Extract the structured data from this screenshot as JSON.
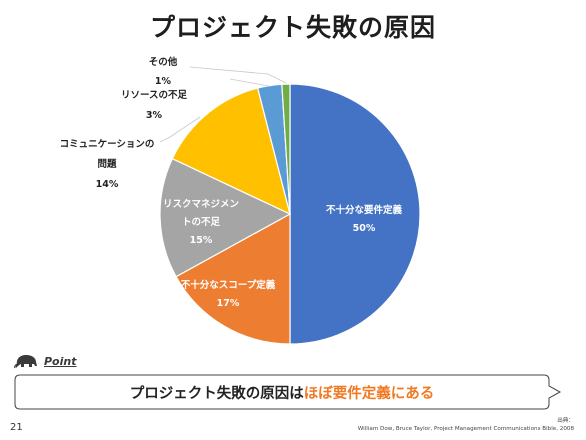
{
  "title": "プロジェクト失敗の原因",
  "chart_data": {
    "type": "pie",
    "title": "プロジェクト失敗の原因",
    "slices": [
      {
        "label": "不十分な要件定義",
        "value": 50,
        "value_label": "50%",
        "color": "#4472c4",
        "label_position": "inside"
      },
      {
        "label": "不十分なスコープ定義",
        "value": 17,
        "value_label": "17%",
        "color": "#ed7d31",
        "label_position": "inside"
      },
      {
        "label": "リスクマネジメントの不足",
        "value": 15,
        "value_label": "15%",
        "color": "#a5a5a5",
        "label_position": "inside"
      },
      {
        "label": "コミュニケーションの問題",
        "value": 14,
        "value_label": "14%",
        "color": "#ffc000",
        "label_position": "outside"
      },
      {
        "label": "リソースの不足",
        "value": 3,
        "value_label": "3%",
        "color": "#5b9bd5",
        "label_position": "outside"
      },
      {
        "label": "その他",
        "value": 1,
        "value_label": "1%",
        "color": "#70ad47",
        "label_position": "outside"
      }
    ],
    "start": "12 o'clock",
    "direction": "clockwise"
  },
  "labels": {
    "requirements": [
      "不十分な要件定義",
      "50%"
    ],
    "scope": [
      "不十分なスコープ定義",
      "17%"
    ],
    "risk": [
      "リスクマネジメン",
      "トの不足",
      "15%"
    ],
    "communication": [
      "コミュニケーションの",
      "問題",
      "14%"
    ],
    "resource": [
      "リソースの不足",
      "3%"
    ],
    "other": [
      "その他",
      "1%"
    ]
  },
  "point": {
    "icon": "mammoth-icon",
    "label": "Point"
  },
  "callout": {
    "text_before": "プロジェクト失敗の原因は",
    "text_highlight": "ほぼ要件定義にある",
    "highlight_color": "#f07a24"
  },
  "source": {
    "line1": "出典：",
    "line2": "William Dow, Bruce Taylor, Project Management Communications Bible, 2008"
  },
  "page_number": "21"
}
